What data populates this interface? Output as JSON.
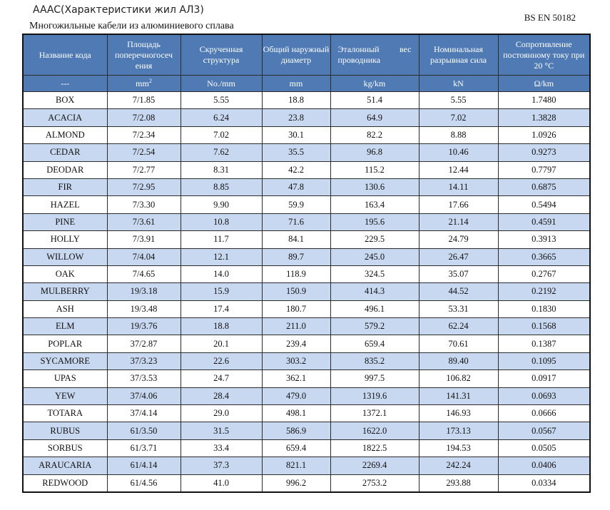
{
  "header": {
    "title": "AAAC(Характеристики  жил  АЛ3)",
    "standard": "BS EN 50182",
    "subtitle": "Многожильные кабели из алюминиевого сплава"
  },
  "table": {
    "columns": [
      "Название кода",
      "Площадь поперечногосеч ения",
      "Скрученная структура",
      "Общий наружный диаметр",
      "Эталонный вес проводника",
      "Номинальная разрывная сила",
      "Сопротивление постоянному току при 20 °C"
    ],
    "units": [
      "---",
      "mm",
      "No./mm",
      "mm",
      "kg/km",
      "kN",
      "Ω/km"
    ],
    "units_sup": "2",
    "rows": [
      [
        "BOX",
        "7/1.85",
        "5.55",
        "18.8",
        "51.4",
        "5.55",
        "1.7480"
      ],
      [
        "ACACIA",
        "7/2.08",
        "6.24",
        "23.8",
        "64.9",
        "7.02",
        "1.3828"
      ],
      [
        "ALMOND",
        "7/2.34",
        "7.02",
        "30.1",
        "82.2",
        "8.88",
        "1.0926"
      ],
      [
        "CEDAR",
        "7/2.54",
        "7.62",
        "35.5",
        "96.8",
        "10.46",
        "0.9273"
      ],
      [
        "DEODAR",
        "7/2.77",
        "8.31",
        "42.2",
        "115.2",
        "12.44",
        "0.7797"
      ],
      [
        "FIR",
        "7/2.95",
        "8.85",
        "47.8",
        "130.6",
        "14.11",
        "0.6875"
      ],
      [
        "HAZEL",
        "7/3.30",
        "9.90",
        "59.9",
        "163.4",
        "17.66",
        "0.5494"
      ],
      [
        "PINE",
        "7/3.61",
        "10.8",
        "71.6",
        "195.6",
        "21.14",
        "0.4591"
      ],
      [
        "HOLLY",
        "7/3.91",
        "11.7",
        "84.1",
        "229.5",
        "24.79",
        "0.3913"
      ],
      [
        "WILLOW",
        "7/4.04",
        "12.1",
        "89.7",
        "245.0",
        "26.47",
        "0.3665"
      ],
      [
        "OAK",
        "7/4.65",
        "14.0",
        "118.9",
        "324.5",
        "35.07",
        "0.2767"
      ],
      [
        "MULBERRY",
        "19/3.18",
        "15.9",
        "150.9",
        "414.3",
        "44.52",
        "0.2192"
      ],
      [
        "ASH",
        "19/3.48",
        "17.4",
        "180.7",
        "496.1",
        "53.31",
        "0.1830"
      ],
      [
        "ELM",
        "19/3.76",
        "18.8",
        "211.0",
        "579.2",
        "62.24",
        "0.1568"
      ],
      [
        "POPLAR",
        "37/2.87",
        "20.1",
        "239.4",
        "659.4",
        "70.61",
        "0.1387"
      ],
      [
        "SYCAMORE",
        "37/3.23",
        "22.6",
        "303.2",
        "835.2",
        "89.40",
        "0.1095"
      ],
      [
        "UPAS",
        "37/3.53",
        "24.7",
        "362.1",
        "997.5",
        "106.82",
        "0.0917"
      ],
      [
        "YEW",
        "37/4.06",
        "28.4",
        "479.0",
        "1319.6",
        "141.31",
        "0.0693"
      ],
      [
        "TOTARA",
        "37/4.14",
        "29.0",
        "498.1",
        "1372.1",
        "146.93",
        "0.0666"
      ],
      [
        "RUBUS",
        "61/3.50",
        "31.5",
        "586.9",
        "1622.0",
        "173.13",
        "0.0567"
      ],
      [
        "SORBUS",
        "61/3.71",
        "33.4",
        "659.4",
        "1822.5",
        "194.53",
        "0.0505"
      ],
      [
        "ARAUCARIA",
        "61/4.14",
        "37.3",
        "821.1",
        "2269.4",
        "242.24",
        "0.0406"
      ],
      [
        "REDWOOD",
        "61/4.56",
        "41.0",
        "996.2",
        "2753.2",
        "293.88",
        "0.0334"
      ]
    ]
  },
  "colors": {
    "header_bg": "#4f7ab3",
    "alt_row_bg": "#c8d8f0"
  }
}
